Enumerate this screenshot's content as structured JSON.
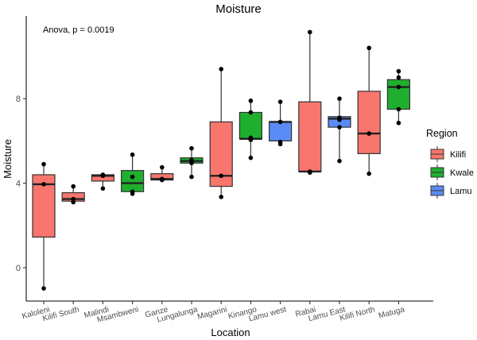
{
  "chart_data": {
    "type": "boxplot",
    "title": "Moisture",
    "annotation": "Anova, p = 0.0019",
    "xlabel": "Location",
    "ylabel": "Moisture",
    "ylim": [
      -1.6,
      11.5
    ],
    "yticks": [
      0,
      4,
      8
    ],
    "grid": false,
    "legend": {
      "title": "Region",
      "position": "right",
      "entries": [
        {
          "name": "Kilifi",
          "color": "#F8766D"
        },
        {
          "name": "Kwale",
          "color": "#1FAF2F"
        },
        {
          "name": "Lamu",
          "color": "#5B8CF5"
        }
      ]
    },
    "categories": [
      "Kaloleni",
      "Kilifi South",
      "Malindi",
      "Msambweni",
      "Ganze",
      "Lungalunga",
      "Magarini",
      "Kinango",
      "Lamu west",
      "Rabai",
      "Lamu East",
      "Kilifi North",
      "Matuga"
    ],
    "boxes": [
      {
        "location": "Kaloleni",
        "region": "Kilifi",
        "min": -0.98,
        "q1": 1.45,
        "median": 3.95,
        "q3": 4.4,
        "max": 4.9,
        "points": [
          4.9,
          3.95,
          -0.98
        ]
      },
      {
        "location": "Kilifi South",
        "region": "Kilifi",
        "min": 3.1,
        "q1": 3.15,
        "median": 3.25,
        "q3": 3.55,
        "max": 3.85,
        "points": [
          3.85,
          3.25,
          3.1
        ]
      },
      {
        "location": "Malindi",
        "region": "Kilifi",
        "min": 3.75,
        "q1": 4.1,
        "median": 4.35,
        "q3": 4.4,
        "max": 4.4,
        "points": [
          4.4,
          4.35,
          3.75
        ]
      },
      {
        "location": "Msambweni",
        "region": "Kwale",
        "min": 3.5,
        "q1": 3.6,
        "median": 4.0,
        "q3": 4.6,
        "max": 5.35,
        "points": [
          5.35,
          4.3,
          3.6,
          3.5
        ]
      },
      {
        "location": "Ganze",
        "region": "Kilifi",
        "min": 4.15,
        "q1": 4.15,
        "median": 4.2,
        "q3": 4.45,
        "max": 4.75,
        "points": [
          4.75,
          4.2,
          4.15
        ]
      },
      {
        "location": "Lungalunga",
        "region": "Kwale",
        "min": 4.3,
        "q1": 4.95,
        "median": 5.05,
        "q3": 5.2,
        "max": 5.65,
        "points": [
          5.65,
          5.1,
          5.0,
          4.95,
          4.3
        ]
      },
      {
        "location": "Magarini",
        "region": "Kilifi",
        "min": 3.35,
        "q1": 3.85,
        "median": 4.35,
        "q3": 6.9,
        "max": 9.4,
        "points": [
          9.4,
          4.35,
          3.35
        ]
      },
      {
        "location": "Kinango",
        "region": "Kwale",
        "min": 5.2,
        "q1": 6.1,
        "median": 6.1,
        "q3": 7.35,
        "max": 7.9,
        "points": [
          7.9,
          7.35,
          6.15,
          6.05,
          5.2
        ]
      },
      {
        "location": "Lamu west",
        "region": "Lamu",
        "min": 5.85,
        "q1": 6.0,
        "median": 6.9,
        "q3": 6.9,
        "max": 7.85,
        "points": [
          7.85,
          6.9,
          5.95,
          5.85
        ]
      },
      {
        "location": "Rabai",
        "region": "Kilifi",
        "min": 4.5,
        "q1": 4.55,
        "median": 4.55,
        "q3": 7.85,
        "max": 11.15,
        "points": [
          11.15,
          4.55,
          4.5
        ]
      },
      {
        "location": "Lamu East",
        "region": "Lamu",
        "min": 5.05,
        "q1": 6.65,
        "median": 7.05,
        "q3": 7.15,
        "max": 8.0,
        "points": [
          8.0,
          7.1,
          7.0,
          6.65,
          5.05
        ]
      },
      {
        "location": "Kilifi North",
        "region": "Kilifi",
        "min": 4.45,
        "q1": 5.4,
        "median": 6.35,
        "q3": 8.35,
        "max": 10.4,
        "points": [
          10.4,
          6.35,
          4.45
        ]
      },
      {
        "location": "Matuga",
        "region": "Kwale",
        "min": 6.85,
        "q1": 7.5,
        "median": 8.55,
        "q3": 8.9,
        "max": 9.3,
        "points": [
          9.3,
          9.0,
          8.55,
          7.5,
          6.85
        ]
      }
    ]
  }
}
